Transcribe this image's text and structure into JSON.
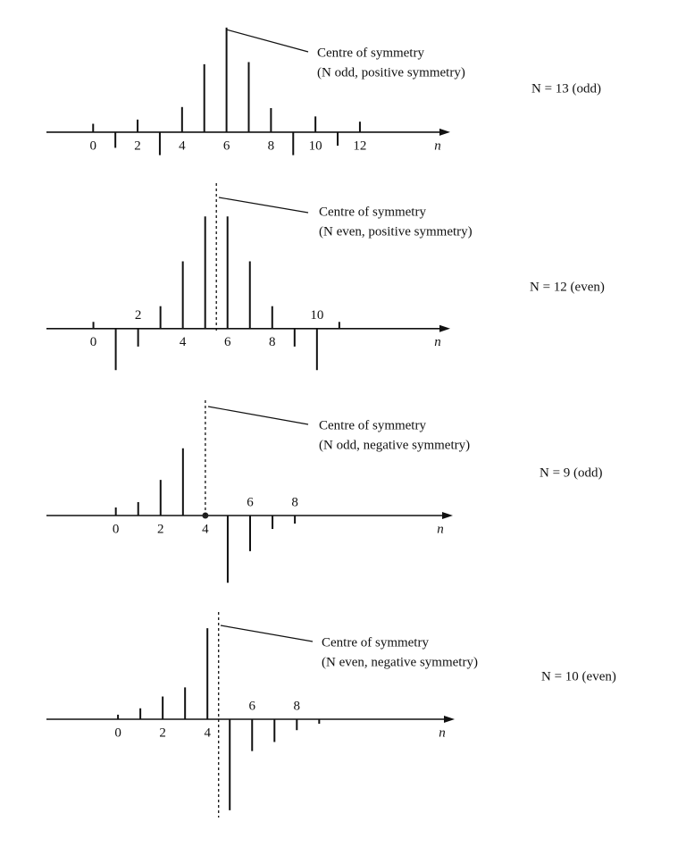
{
  "chart_data": [
    {
      "type": "stem",
      "x": [
        0,
        1,
        2,
        3,
        4,
        5,
        6,
        7,
        8,
        9,
        10,
        11,
        12
      ],
      "values": [
        0.08,
        -0.15,
        0.12,
        -0.22,
        0.24,
        0.65,
        1.0,
        0.67,
        0.23,
        -0.22,
        0.15,
        -0.13,
        0.1
      ],
      "xlim": [
        -2.1,
        15.9
      ],
      "ylim": [
        -0.3,
        1.05
      ],
      "xticks": [
        0,
        2,
        4,
        6,
        8,
        10,
        12
      ],
      "xlabel": "n",
      "annotation": [
        "Centre of symmetry",
        "(N odd, positive symmetry)"
      ],
      "label": "N = 13 (odd)",
      "centre_line": false
    },
    {
      "type": "stem",
      "x": [
        0,
        1,
        2,
        3,
        4,
        5,
        6,
        7,
        8,
        9,
        10,
        11
      ],
      "values": [
        0.06,
        -0.37,
        -0.16,
        0.2,
        0.6,
        1.0,
        1.0,
        0.6,
        0.2,
        -0.16,
        -0.37,
        0.06
      ],
      "xlim": [
        -2.1,
        15.8
      ],
      "ylim": [
        -0.4,
        1.05
      ],
      "xticks": [
        0,
        2,
        4,
        6,
        8,
        10
      ],
      "xlabel": "n",
      "annotation": [
        "Centre of symmetry",
        "(N even, positive symmetry)"
      ],
      "label": "N = 12 (even)",
      "centre_line": true
    },
    {
      "type": "stem",
      "x": [
        0,
        1,
        2,
        3,
        4,
        5,
        6,
        7,
        8
      ],
      "values": [
        0.12,
        0.2,
        0.53,
        1.0,
        0,
        -1.0,
        -0.53,
        -0.2,
        -0.12
      ],
      "xlim": [
        -3.1,
        14.9
      ],
      "ylim": [
        -1.05,
        1.05
      ],
      "xticks": [
        0,
        2,
        4,
        6,
        8
      ],
      "xlabel": "n",
      "annotation": [
        "Centre of symmetry",
        "(N odd, negative symmetry)"
      ],
      "label": "N = 9 (odd)",
      "centre_line": true
    },
    {
      "type": "stem",
      "x": [
        0,
        1,
        2,
        3,
        4,
        5,
        6,
        7,
        8,
        9
      ],
      "values": [
        0.05,
        0.12,
        0.25,
        0.35,
        1.0,
        -1.0,
        -0.35,
        -0.25,
        -0.12,
        -0.05
      ],
      "xlim": [
        -3.2,
        14.9
      ],
      "ylim": [
        -1.1,
        1.1
      ],
      "xticks": [
        0,
        2,
        4,
        6,
        8
      ],
      "xlabel": "n",
      "annotation": [
        "Centre of symmetry",
        "(N even, negative symmetry)"
      ],
      "label": "N = 10 (even)",
      "centre_line": true
    }
  ]
}
